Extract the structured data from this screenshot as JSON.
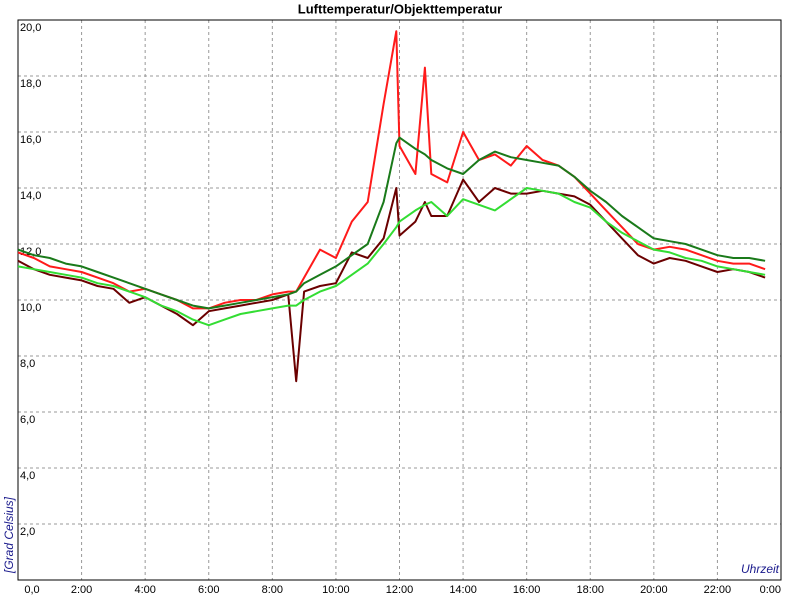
{
  "chart_data": {
    "type": "line",
    "title": "Lufttemperatur/Objekttemperatur",
    "y_label": "[Grad Celsius]",
    "x_label": "Uhrzeit",
    "x": [
      0,
      0.5,
      1,
      1.5,
      2,
      2.5,
      3,
      3.5,
      4,
      4.5,
      5,
      5.5,
      6,
      6.5,
      7,
      7.5,
      8,
      8.5,
      8.75,
      9,
      9.5,
      10,
      10.5,
      11,
      11.5,
      11.9,
      12,
      12.5,
      12.8,
      13,
      13.5,
      14,
      14.5,
      15,
      15.5,
      16,
      16.5,
      17,
      17.5,
      18,
      18.5,
      19,
      19.5,
      20,
      20.5,
      21,
      21.5,
      22,
      22.5,
      23,
      23.5
    ],
    "series": [
      {
        "color": "#6b0000",
        "values": [
          11.4,
          11.1,
          10.9,
          10.8,
          10.7,
          10.5,
          10.4,
          9.9,
          10.1,
          9.8,
          9.5,
          9.1,
          9.6,
          9.7,
          9.8,
          9.9,
          10.0,
          10.2,
          7.1,
          10.3,
          10.5,
          10.6,
          11.7,
          11.5,
          12.2,
          14.0,
          12.3,
          12.8,
          13.5,
          13.0,
          13.0,
          14.3,
          13.5,
          14.0,
          13.8,
          13.8,
          13.9,
          13.8,
          13.7,
          13.4,
          12.8,
          12.2,
          11.6,
          11.3,
          11.5,
          11.4,
          11.2,
          11.0,
          11.1,
          11.0,
          10.8
        ]
      },
      {
        "color": "#ff1a1a",
        "values": [
          11.7,
          11.5,
          11.2,
          11.1,
          11.0,
          10.8,
          10.6,
          10.3,
          10.4,
          10.2,
          10.0,
          9.7,
          9.7,
          9.9,
          10.0,
          10.0,
          10.2,
          10.3,
          10.3,
          10.8,
          11.8,
          11.5,
          12.8,
          13.5,
          17.0,
          19.6,
          15.5,
          14.5,
          18.3,
          14.5,
          14.2,
          16.0,
          15.0,
          15.2,
          14.8,
          15.5,
          15.0,
          14.8,
          14.4,
          13.8,
          13.2,
          12.6,
          12.0,
          11.8,
          11.9,
          11.8,
          11.6,
          11.4,
          11.3,
          11.3,
          11.1
        ]
      },
      {
        "color": "#1a7a1a",
        "values": [
          11.8,
          11.6,
          11.5,
          11.3,
          11.2,
          11.0,
          10.8,
          10.6,
          10.4,
          10.2,
          10.0,
          9.8,
          9.7,
          9.8,
          9.9,
          10.0,
          10.1,
          10.2,
          10.3,
          10.6,
          10.9,
          11.2,
          11.6,
          12.0,
          13.5,
          15.6,
          15.8,
          15.4,
          15.2,
          15.0,
          14.7,
          14.5,
          15.0,
          15.3,
          15.1,
          15.0,
          14.9,
          14.8,
          14.4,
          13.9,
          13.5,
          13.0,
          12.6,
          12.2,
          12.1,
          12.0,
          11.8,
          11.6,
          11.5,
          11.5,
          11.4
        ]
      },
      {
        "color": "#33dd33",
        "values": [
          11.2,
          11.1,
          11.0,
          10.9,
          10.8,
          10.6,
          10.5,
          10.3,
          10.1,
          9.8,
          9.6,
          9.3,
          9.1,
          9.3,
          9.5,
          9.6,
          9.7,
          9.8,
          9.8,
          10.0,
          10.3,
          10.5,
          10.9,
          11.3,
          12.0,
          12.6,
          12.8,
          13.2,
          13.4,
          13.5,
          13.0,
          13.6,
          13.4,
          13.2,
          13.6,
          14.0,
          13.9,
          13.8,
          13.5,
          13.3,
          12.8,
          12.4,
          12.1,
          11.8,
          11.7,
          11.5,
          11.4,
          11.2,
          11.1,
          11.0,
          10.9
        ]
      }
    ],
    "xlim": [
      0,
      24
    ],
    "xticks": [
      {
        "value": 0,
        "label": "0,0"
      },
      {
        "value": 2,
        "label": "2:00"
      },
      {
        "value": 4,
        "label": "4:00"
      },
      {
        "value": 6,
        "label": "6:00"
      },
      {
        "value": 8,
        "label": "8:00"
      },
      {
        "value": 10,
        "label": "10:00"
      },
      {
        "value": 12,
        "label": "12:00"
      },
      {
        "value": 14,
        "label": "14:00"
      },
      {
        "value": 16,
        "label": "16:00"
      },
      {
        "value": 18,
        "label": "18:00"
      },
      {
        "value": 20,
        "label": "20:00"
      },
      {
        "value": 22,
        "label": "22:00"
      },
      {
        "value": 24,
        "label": "0:00"
      }
    ],
    "ylim": [
      0,
      20
    ],
    "yticks": [
      {
        "value": 2,
        "label": "2,0"
      },
      {
        "value": 4,
        "label": "4,0"
      },
      {
        "value": 6,
        "label": "6,0"
      },
      {
        "value": 8,
        "label": "8,0"
      },
      {
        "value": 10,
        "label": "10,0"
      },
      {
        "value": 12,
        "label": "12,0"
      },
      {
        "value": 14,
        "label": "14,0"
      },
      {
        "value": 16,
        "label": "16,0"
      },
      {
        "value": 18,
        "label": "18,0"
      },
      {
        "value": 20,
        "label": "20,0"
      }
    ],
    "grid": true
  }
}
